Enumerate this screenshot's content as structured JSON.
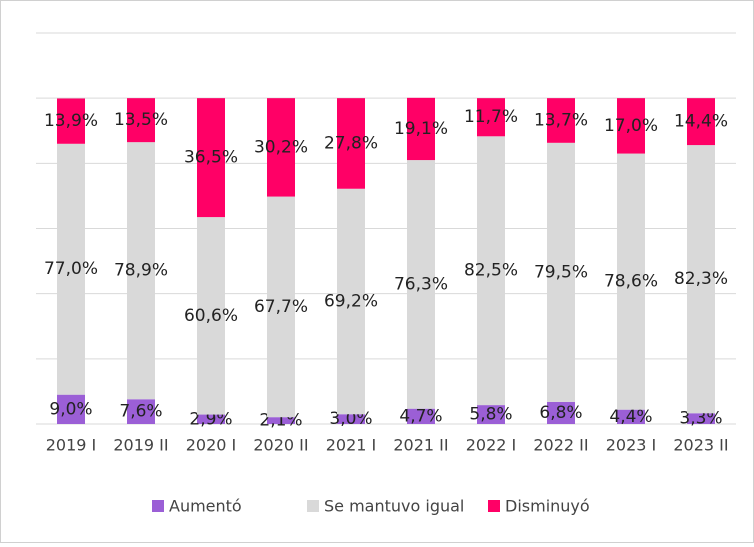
{
  "chart_data": {
    "type": "stacked_bar",
    "categories": [
      "2019 I",
      "2019 II",
      "2020 I",
      "2020 II",
      "2021 I",
      "2021 II",
      "2022 I",
      "2022 II",
      "2023 I",
      "2023 II"
    ],
    "series": [
      {
        "name": "Aumentó",
        "color": "#9b5fd6",
        "values": [
          9.0,
          7.6,
          2.9,
          2.1,
          3.0,
          4.7,
          5.8,
          6.8,
          4.4,
          3.3
        ],
        "value_labels": [
          "9,0%",
          "7,6%",
          "2,9%",
          "2,1%",
          "3,0%",
          "4,7%",
          "5,8%",
          "6,8%",
          "4,4%",
          "3,3%"
        ]
      },
      {
        "name": "Se mantuvo igual",
        "color": "#d9d9d9",
        "values": [
          77.0,
          78.9,
          60.6,
          67.7,
          69.2,
          76.3,
          82.5,
          79.5,
          78.6,
          82.3
        ],
        "value_labels": [
          "77,0%",
          "78,9%",
          "60,6%",
          "67,7%",
          "69,2%",
          "76,3%",
          "82,5%",
          "79,5%",
          "78,6%",
          "82,3%"
        ]
      },
      {
        "name": "Disminuyó",
        "color": "#ff0066",
        "values": [
          13.9,
          13.5,
          36.5,
          30.2,
          27.8,
          19.1,
          11.7,
          13.7,
          17.0,
          14.4
        ],
        "value_labels": [
          "13,9%",
          "13,5%",
          "36,5%",
          "30,2%",
          "27,8%",
          "19,1%",
          "11,7%",
          "13,7%",
          "17,0%",
          "14,4%"
        ]
      }
    ],
    "ylim": [
      0,
      120
    ],
    "yticks": [
      0,
      20,
      40,
      60,
      80,
      100,
      120
    ],
    "grid": true,
    "legend": "bottom"
  }
}
